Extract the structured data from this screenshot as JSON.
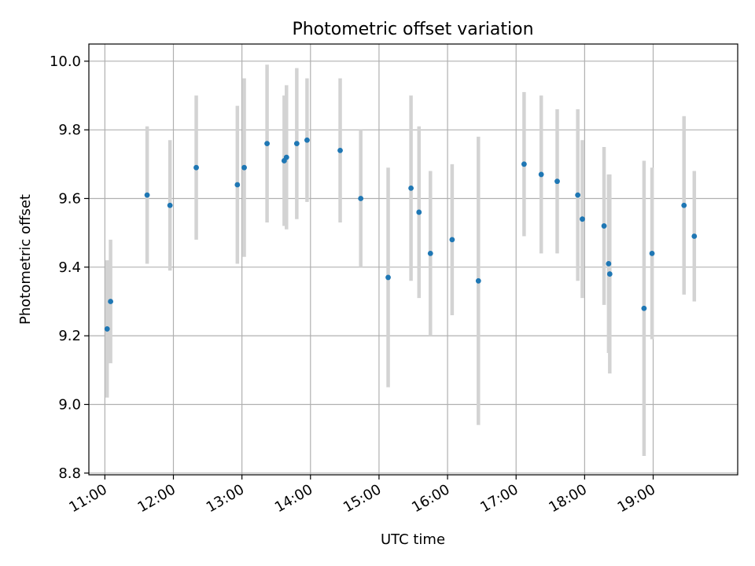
{
  "chart_data": {
    "type": "scatter",
    "title": "Photometric offset variation",
    "xlabel": "UTC time",
    "ylabel": "Photometric offset",
    "x_ticks": [
      "11:00",
      "12:00",
      "13:00",
      "14:00",
      "15:00",
      "16:00",
      "17:00",
      "18:00",
      "19:00"
    ],
    "y_ticks": [
      "8.8",
      "9.0",
      "9.2",
      "9.4",
      "9.6",
      "9.8",
      "10.0"
    ],
    "xlim": [
      "10:46",
      "20:14"
    ],
    "ylim": [
      8.795,
      10.05
    ],
    "grid": true,
    "marker_color": "#1f77b4",
    "errorbar_color": "#d3d3d3",
    "points": [
      {
        "time": "11:02",
        "y": 9.22,
        "err": 0.2
      },
      {
        "time": "11:05",
        "y": 9.3,
        "err": 0.18
      },
      {
        "time": "11:37",
        "y": 9.61,
        "err": 0.2
      },
      {
        "time": "11:57",
        "y": 9.58,
        "err": 0.19
      },
      {
        "time": "12:20",
        "y": 9.69,
        "err": 0.21
      },
      {
        "time": "12:56",
        "y": 9.64,
        "err": 0.23
      },
      {
        "time": "13:02",
        "y": 9.69,
        "err": 0.26
      },
      {
        "time": "13:22",
        "y": 9.76,
        "err": 0.23
      },
      {
        "time": "13:37",
        "y": 9.71,
        "err": 0.19
      },
      {
        "time": "13:39",
        "y": 9.72,
        "err": 0.21
      },
      {
        "time": "13:48",
        "y": 9.76,
        "err": 0.22
      },
      {
        "time": "13:57",
        "y": 9.77,
        "err": 0.18
      },
      {
        "time": "14:26",
        "y": 9.74,
        "err": 0.21
      },
      {
        "time": "14:44",
        "y": 9.6,
        "err": 0.2
      },
      {
        "time": "15:08",
        "y": 9.37,
        "err": 0.32
      },
      {
        "time": "15:28",
        "y": 9.63,
        "err": 0.27
      },
      {
        "time": "15:35",
        "y": 9.56,
        "err": 0.25
      },
      {
        "time": "15:45",
        "y": 9.44,
        "err": 0.24
      },
      {
        "time": "16:04",
        "y": 9.48,
        "err": 0.22
      },
      {
        "time": "16:27",
        "y": 9.36,
        "err": 0.42
      },
      {
        "time": "17:07",
        "y": 9.7,
        "err": 0.21
      },
      {
        "time": "17:22",
        "y": 9.67,
        "err": 0.23
      },
      {
        "time": "17:36",
        "y": 9.65,
        "err": 0.21
      },
      {
        "time": "17:54",
        "y": 9.61,
        "err": 0.25
      },
      {
        "time": "17:58",
        "y": 9.54,
        "err": 0.23
      },
      {
        "time": "18:17",
        "y": 9.52,
        "err": 0.23
      },
      {
        "time": "18:21",
        "y": 9.41,
        "err": 0.26
      },
      {
        "time": "18:22",
        "y": 9.38,
        "err": 0.29
      },
      {
        "time": "18:52",
        "y": 9.28,
        "err": 0.43
      },
      {
        "time": "18:59",
        "y": 9.44,
        "err": 0.25
      },
      {
        "time": "19:27",
        "y": 9.58,
        "err": 0.26
      },
      {
        "time": "19:36",
        "y": 9.49,
        "err": 0.19
      }
    ]
  }
}
